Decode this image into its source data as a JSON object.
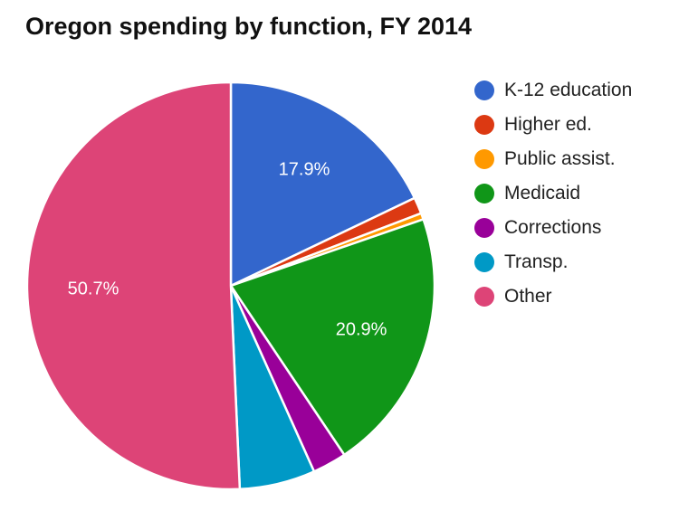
{
  "chart_data": {
    "type": "pie",
    "title": "Oregon spending by function, FY 2014",
    "start_angle": "top, clockwise",
    "legend_position": "right",
    "slices": [
      {
        "name": "K-12 education",
        "value": 17.9,
        "color": "#3366cc",
        "label": "17.9%"
      },
      {
        "name": "Higher ed.",
        "value": 1.3,
        "color": "#dc3912",
        "label": ""
      },
      {
        "name": "Public assist.",
        "value": 0.5,
        "color": "#ff9900",
        "label": ""
      },
      {
        "name": "Medicaid",
        "value": 20.9,
        "color": "#109618",
        "label": "20.9%"
      },
      {
        "name": "Corrections",
        "value": 2.7,
        "color": "#990099",
        "label": ""
      },
      {
        "name": "Transp.",
        "value": 6.0,
        "color": "#0099c6",
        "label": ""
      },
      {
        "name": "Other",
        "value": 50.7,
        "color": "#dd4477",
        "label": "50.7%"
      }
    ]
  }
}
